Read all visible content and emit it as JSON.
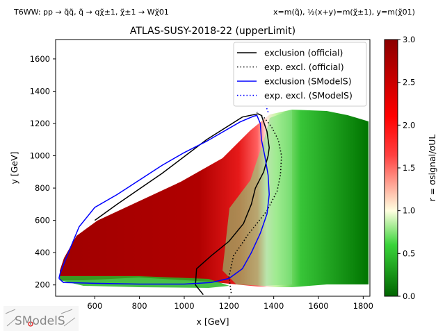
{
  "header": {
    "process": "T6WW: pp → q̃q̃, q̃ → qχ̃±1, χ̃±1 → Wχ̃01",
    "mapping": "x=m(q̃), ½(x+y)=m(χ̃±1), y=m(χ̃01)"
  },
  "logo": {
    "text": "SModelS"
  },
  "chart_data": {
    "type": "heatmap",
    "title": "ATLAS-SUSY-2018-22 (upperLimit)",
    "xlabel": "x [GeV]",
    "ylabel": "y [GeV]",
    "colorbar_label": "r = σsignal/σUL",
    "xlim": [
      425,
      1830
    ],
    "ylim": [
      130,
      1720
    ],
    "clim": [
      0,
      3
    ],
    "xticks": [
      600,
      800,
      1000,
      1200,
      1400,
      1600,
      1800
    ],
    "yticks": [
      200,
      400,
      600,
      800,
      1000,
      1200,
      1400,
      1600
    ],
    "cticks": [
      0.0,
      0.5,
      1.0,
      1.5,
      2.0,
      2.5,
      3.0
    ],
    "colormap": [
      "#006400",
      "#00ff00",
      "#ffffe0",
      "#ff0000",
      "#8b0000"
    ],
    "legend_position": "top-right",
    "legend": [
      {
        "label": "exclusion (official)",
        "color": "#000000",
        "style": "solid"
      },
      {
        "label": "exp. excl. (official)",
        "color": "#000000",
        "style": "dotted"
      },
      {
        "label": "exclusion (SModelS)",
        "color": "#0000ff",
        "style": "solid"
      },
      {
        "label": "exp. excl. (SModelS)",
        "color": "#0000ff",
        "style": "dotted"
      }
    ],
    "series": [
      {
        "name": "exclusion (official)",
        "style": "solid",
        "color": "#000000",
        "x": [
          1085,
          1050,
          1055,
          1120,
          1200,
          1265,
          1300,
          1318,
          1355,
          1375,
          1380,
          1370,
          1355,
          1345,
          1330,
          1260,
          1100,
          900,
          700,
          600
        ],
        "y": [
          140,
          200,
          300,
          380,
          470,
          580,
          700,
          800,
          900,
          1000,
          1050,
          1150,
          1210,
          1250,
          1260,
          1240,
          1100,
          890,
          700,
          600
        ]
      },
      {
        "name": "exp. excl. (official)",
        "style": "dotted",
        "color": "#000000",
        "x": [
          1210,
          1200,
          1220,
          1290,
          1370,
          1415,
          1430,
          1435,
          1420,
          1390,
          1355,
          1330,
          1325
        ],
        "y": [
          150,
          250,
          380,
          520,
          660,
          780,
          880,
          1000,
          1100,
          1180,
          1240,
          1260,
          1270
        ]
      },
      {
        "name": "exclusion (SModelS)",
        "style": "solid",
        "color": "#0000ff",
        "x": [
          440,
          460,
          600,
          800,
          1000,
          1120,
          1200,
          1260,
          1300,
          1340,
          1370,
          1380,
          1375,
          1360,
          1345,
          1340,
          1325,
          1310,
          1250,
          1100,
          1000,
          900,
          800,
          700,
          600,
          530,
          470,
          445,
          440
        ],
        "y": [
          240,
          215,
          210,
          205,
          205,
          215,
          240,
          300,
          400,
          520,
          640,
          760,
          880,
          1000,
          1100,
          1200,
          1250,
          1245,
          1210,
          1090,
          1020,
          940,
          850,
          760,
          680,
          560,
          360,
          270,
          240
        ]
      },
      {
        "name": "exp. excl. (SModelS)",
        "style": "dotted",
        "color": "#0000ff",
        "x": [
          1375,
          1370,
          1365,
          1360
        ],
        "y": [
          1270,
          1290,
          1310,
          1320
        ]
      }
    ],
    "heatmap_regions": [
      {
        "x": [
          430,
          1100
        ],
        "y": [
          180,
          1000
        ],
        "r": 3.0
      },
      {
        "x": [
          1100,
          1300
        ],
        "y": [
          300,
          1200
        ],
        "r": 2.0
      },
      {
        "x": [
          1300,
          1400
        ],
        "y": [
          200,
          1250
        ],
        "r": 0.8
      },
      {
        "x": [
          1400,
          1800
        ],
        "y": [
          150,
          1150
        ],
        "r": 0.3
      }
    ]
  }
}
